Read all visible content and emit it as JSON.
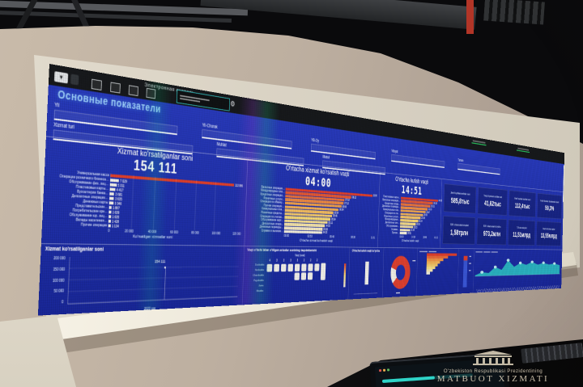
{
  "photo": {
    "watermark_line1": "O'zbekiston Respublikasi Prezidentining",
    "watermark_line2": "MATBUOT XIZMATI"
  },
  "os_bar": {
    "app_title": "Электронная очередь"
  },
  "dashboard": {
    "title": "Основные показатели",
    "filters": [
      {
        "label": "Yil"
      },
      {
        "label": "Yil-Chorak"
      },
      {
        "label": "YB-Oy"
      },
      {
        "label": "Viloyat"
      },
      {
        "label": "Tuman"
      },
      {
        "label": "Xizmat turi"
      },
      {
        "label": "Muhlat"
      },
      {
        "label": "Masul"
      }
    ],
    "served": {
      "title": "Xizmat ko'rsatilganlar soni",
      "value": "154 111",
      "bars": [
        {
          "l": "Универсальная касса",
          "t": "113 986",
          "v": 113986
        },
        {
          "l": "Операции розничного бизнеса…",
          "t": "7 029",
          "v": 7029
        },
        {
          "l": "Обслуживание физ. лиц…",
          "t": "5 311",
          "v": 5311
        },
        {
          "l": "Пластиковые карты…",
          "t": "4 417",
          "v": 4417
        },
        {
          "l": "Бухгалтерия банка…",
          "t": "3 681",
          "v": 3681
        },
        {
          "l": "Депозитные операции…",
          "t": "3 635",
          "v": 3635
        },
        {
          "l": "Денежные карты",
          "t": "3 346",
          "v": 3346
        },
        {
          "l": "Представительские…",
          "t": "1 887",
          "v": 1887
        },
        {
          "l": "Потребительские кре…",
          "t": "1 639",
          "v": 1639
        },
        {
          "l": "Обслуживание юр. лиц…",
          "t": "1 635",
          "v": 1635
        },
        {
          "l": "Вклады населения…",
          "t": "1 428",
          "v": 1428
        },
        {
          "l": "Прочие операции",
          "t": "1 134",
          "v": 1134
        }
      ],
      "x_ticks": [
        "0",
        "20 000",
        "40 000",
        "60 000",
        "80 000",
        "100 000",
        "120 000"
      ],
      "axis_title": "Ko'rsatilgan xizmatlar soni"
    },
    "service_time": {
      "title": "O'rtacha xizmat ko'rsatish vaqti",
      "value": "04:00",
      "bars": [
        {
          "l": "Валютные операции…",
          "t": "11:06",
          "v": 666
        },
        {
          "l": "Международные пла…",
          "t": "08:12",
          "v": 492
        },
        {
          "l": "Кредитные операции…",
          "t": "07:18",
          "v": 438
        },
        {
          "l": "Розничные услуги…",
          "t": "07:13",
          "v": 433
        },
        {
          "l": "Операции по обмену…",
          "t": "06:56",
          "v": 416
        },
        {
          "l": "Прочие операции…",
          "t": "06:34",
          "v": 394
        },
        {
          "l": "Коммунальные пла…",
          "t": "05:54",
          "v": 354
        },
        {
          "l": "Розничные кредиты…",
          "t": "05:46",
          "v": 346
        },
        {
          "l": "Операции по счетам…",
          "t": "05:34",
          "v": 334
        },
        {
          "l": "Обслуживание карт…",
          "t": "05:12",
          "v": 312
        },
        {
          "l": "Депозитные опера…",
          "t": "04:53",
          "v": 293
        },
        {
          "l": "Денежные переводы…",
          "t": "04:36",
          "v": 276
        },
        {
          "l": "Справки и выписки…",
          "t": "04:33",
          "v": 273
        }
      ],
      "x_ticks": [
        "00:00",
        "02:53",
        "05:46",
        "08:38",
        "11:31"
      ],
      "axis_title": "O'rtacha xizmat ko'rsatish vaqti"
    },
    "wait_time": {
      "title": "O'rtacha kutish vaqti",
      "value": "14:51",
      "bars": [
        {
          "l": "Пластиковые карты…",
          "t": "44:38",
          "v": 2678
        },
        {
          "l": "Валютные операции…",
          "t": "38:24",
          "v": 2304
        },
        {
          "l": "Кредитные опера…",
          "t": "35:31",
          "v": 2131
        },
        {
          "l": "Денежные переводы…",
          "t": "32:10",
          "v": 1930
        },
        {
          "l": "Коммунальные пла…",
          "t": "29:47",
          "v": 1787
        },
        {
          "l": "Операции по сче…",
          "t": "26:53",
          "v": 1613
        },
        {
          "l": "Розничные услуги…",
          "t": "23:58",
          "v": 1438
        },
        {
          "l": "Международные…",
          "t": "21:04",
          "v": 1264
        },
        {
          "l": "Депозитные опе…",
          "t": "18:09",
          "v": 1089
        },
        {
          "l": "Обслуживание…",
          "t": "15:15",
          "v": 915
        },
        {
          "l": "Справки…",
          "t": "11:58",
          "v": 718
        },
        {
          "l": "Прочие…",
          "t": "08:21",
          "v": 501
        }
      ],
      "x_ticks": [
        "00:00",
        "14:24",
        "28:48",
        "43:12"
      ],
      "axis_title": "O'rtacha kutish vaqti"
    },
    "kpis": [
      {
        "label": "Jami foydalanuvchilar soni",
        "value": "585,8тыс"
      },
      {
        "label": "Yangi foydalanuvchilar soni",
        "value": "41,62тыс"
      },
      {
        "label": "Faol foydalanuvchilar soni",
        "value": "112,4тыс"
      },
      {
        "label": "Mobil ilovadan foydalanish ulushi",
        "value": "59,3%"
      },
      {
        "label": "P2P o'tkazmalari miqdori",
        "value": "1,58трлн"
      },
      {
        "label": "P2P o'tkazmalari bo'yicha",
        "value": "973,2млн"
      },
      {
        "label": "To'lovlar miqdori",
        "value": "11,51млрд"
      },
      {
        "label": "Mobil to'lovlar miqdori",
        "value": "13,55млрд"
      }
    ],
    "trend": {
      "title": "Xizmat ko'rsatilganlar soni",
      "y_ticks": [
        "200 000",
        "150 000",
        "100 000",
        "50 000",
        "0"
      ],
      "point": "154 111",
      "x_label": "2022 год"
    },
    "matrix": {
      "title": "Vaqt o'tishi bilan o'tilgan arizalar sonining taqsimlanishi",
      "unit": "Vaqt (soat)",
      "cols": [
        "4",
        "3",
        "3",
        "3",
        "3",
        "2",
        "2",
        "2"
      ],
      "rows": [
        "Dushanba",
        "Seshanba",
        "Chorshanba",
        "Payshanba",
        "Juma",
        "Shanba"
      ]
    },
    "wait_dist": {
      "title": "O'rtacha kutish vaqti bo'yicha"
    },
    "mini_funnel": {
      "bars": [
        {
          "l": "",
          "t": "",
          "v": 100
        },
        {
          "l": "",
          "t": "",
          "v": 70
        },
        {
          "l": "",
          "t": "",
          "v": 54
        },
        {
          "l": "",
          "t": "",
          "v": 44
        },
        {
          "l": "",
          "t": "",
          "v": 36
        },
        {
          "l": "",
          "t": "",
          "v": 28
        },
        {
          "l": "",
          "t": "",
          "v": 20
        },
        {
          "l": "",
          "t": "",
          "v": 12
        }
      ]
    },
    "donut": {
      "red_color": "#e04130",
      "light_color": "#f3f0e8"
    }
  }
}
